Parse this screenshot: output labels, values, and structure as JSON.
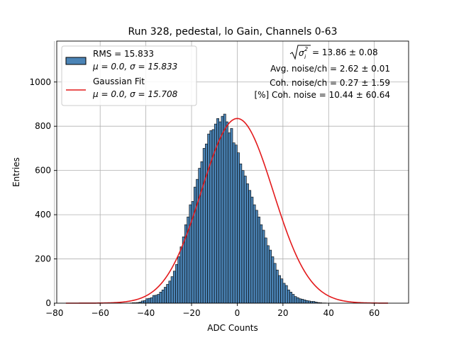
{
  "chart_data": {
    "type": "bar",
    "title": "Run 328, pedestal, lo Gain, Channels 0-63",
    "xlabel": "ADC Counts",
    "ylabel": "Entries",
    "xlim": [
      -79,
      75
    ],
    "ylim": [
      0,
      1185
    ],
    "xticks": [
      -80,
      -60,
      -40,
      -20,
      0,
      20,
      40,
      60
    ],
    "yticks": [
      0,
      200,
      400,
      600,
      800,
      1000
    ],
    "grid": true,
    "legend_position": "top-left",
    "bin_width": 1,
    "histogram": {
      "name": "RMS = 15.833",
      "name_line2": "μ = 0.0, σ = 15.833",
      "color": "#4b84b6",
      "edge_color": "#000000",
      "x_start": -47,
      "values": [
        1,
        2,
        2,
        3,
        5,
        10,
        12,
        20,
        22,
        25,
        35,
        36,
        40,
        50,
        60,
        72,
        85,
        100,
        120,
        145,
        175,
        210,
        255,
        300,
        355,
        390,
        445,
        460,
        525,
        560,
        610,
        640,
        700,
        720,
        765,
        780,
        785,
        810,
        835,
        820,
        845,
        855,
        820,
        770,
        790,
        725,
        715,
        680,
        630,
        600,
        575,
        540,
        510,
        480,
        445,
        420,
        390,
        355,
        330,
        295,
        260,
        240,
        210,
        180,
        150,
        125,
        110,
        90,
        80,
        60,
        50,
        40,
        30,
        25,
        20,
        18,
        15,
        12,
        10,
        8,
        8,
        5,
        3,
        2,
        1,
        1
      ]
    },
    "fit": {
      "name": "Gaussian Fit",
      "name_line2": "μ = 0.0, σ = 15.708",
      "color": "#e31a1c",
      "mean": 0.0,
      "sigma": 15.708,
      "peak": 835,
      "x_range": [
        -75,
        66
      ]
    },
    "stats": {
      "line1_value": " = 13.86 ± 0.08",
      "line2": "Avg. noise/ch = 2.62 ± 0.01",
      "line3": "Coh. noise/ch = 0.27 ± 1.59",
      "line4": "[%] Coh. noise = 10.44 ± 60.64"
    }
  }
}
